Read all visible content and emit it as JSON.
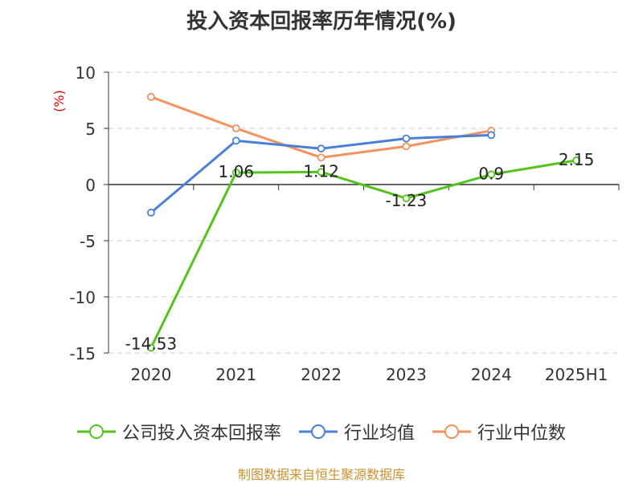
{
  "title": "投入资本回报率历年情况(%)",
  "source": "制图数据来自恒生聚源数据库",
  "chart_data": {
    "type": "line",
    "title": "投入资本回报率历年情况(%)",
    "ylabel": "(%)",
    "xlabel": "",
    "categories": [
      "2020",
      "2021",
      "2022",
      "2023",
      "2024",
      "2025H1"
    ],
    "ylim": [
      -15,
      10
    ],
    "yticks": [
      10,
      5,
      0,
      -5,
      -10,
      -15
    ],
    "grid": true,
    "legend_position": "bottom",
    "series": [
      {
        "name": "公司投入资本回报率",
        "color": "#52c41a",
        "values": [
          -14.53,
          1.06,
          1.12,
          -1.23,
          0.9,
          2.15
        ],
        "labels": [
          "-14.53",
          "1.06",
          "1.12",
          "-1.23",
          "0.9",
          "2.15"
        ]
      },
      {
        "name": "行业均值",
        "color": "#4a7fd8",
        "values": [
          -2.5,
          3.9,
          3.2,
          4.1,
          4.4,
          null
        ]
      },
      {
        "name": "行业中位数",
        "color": "#f5915c",
        "values": [
          7.8,
          5.0,
          2.4,
          3.4,
          4.8,
          null
        ]
      }
    ]
  }
}
